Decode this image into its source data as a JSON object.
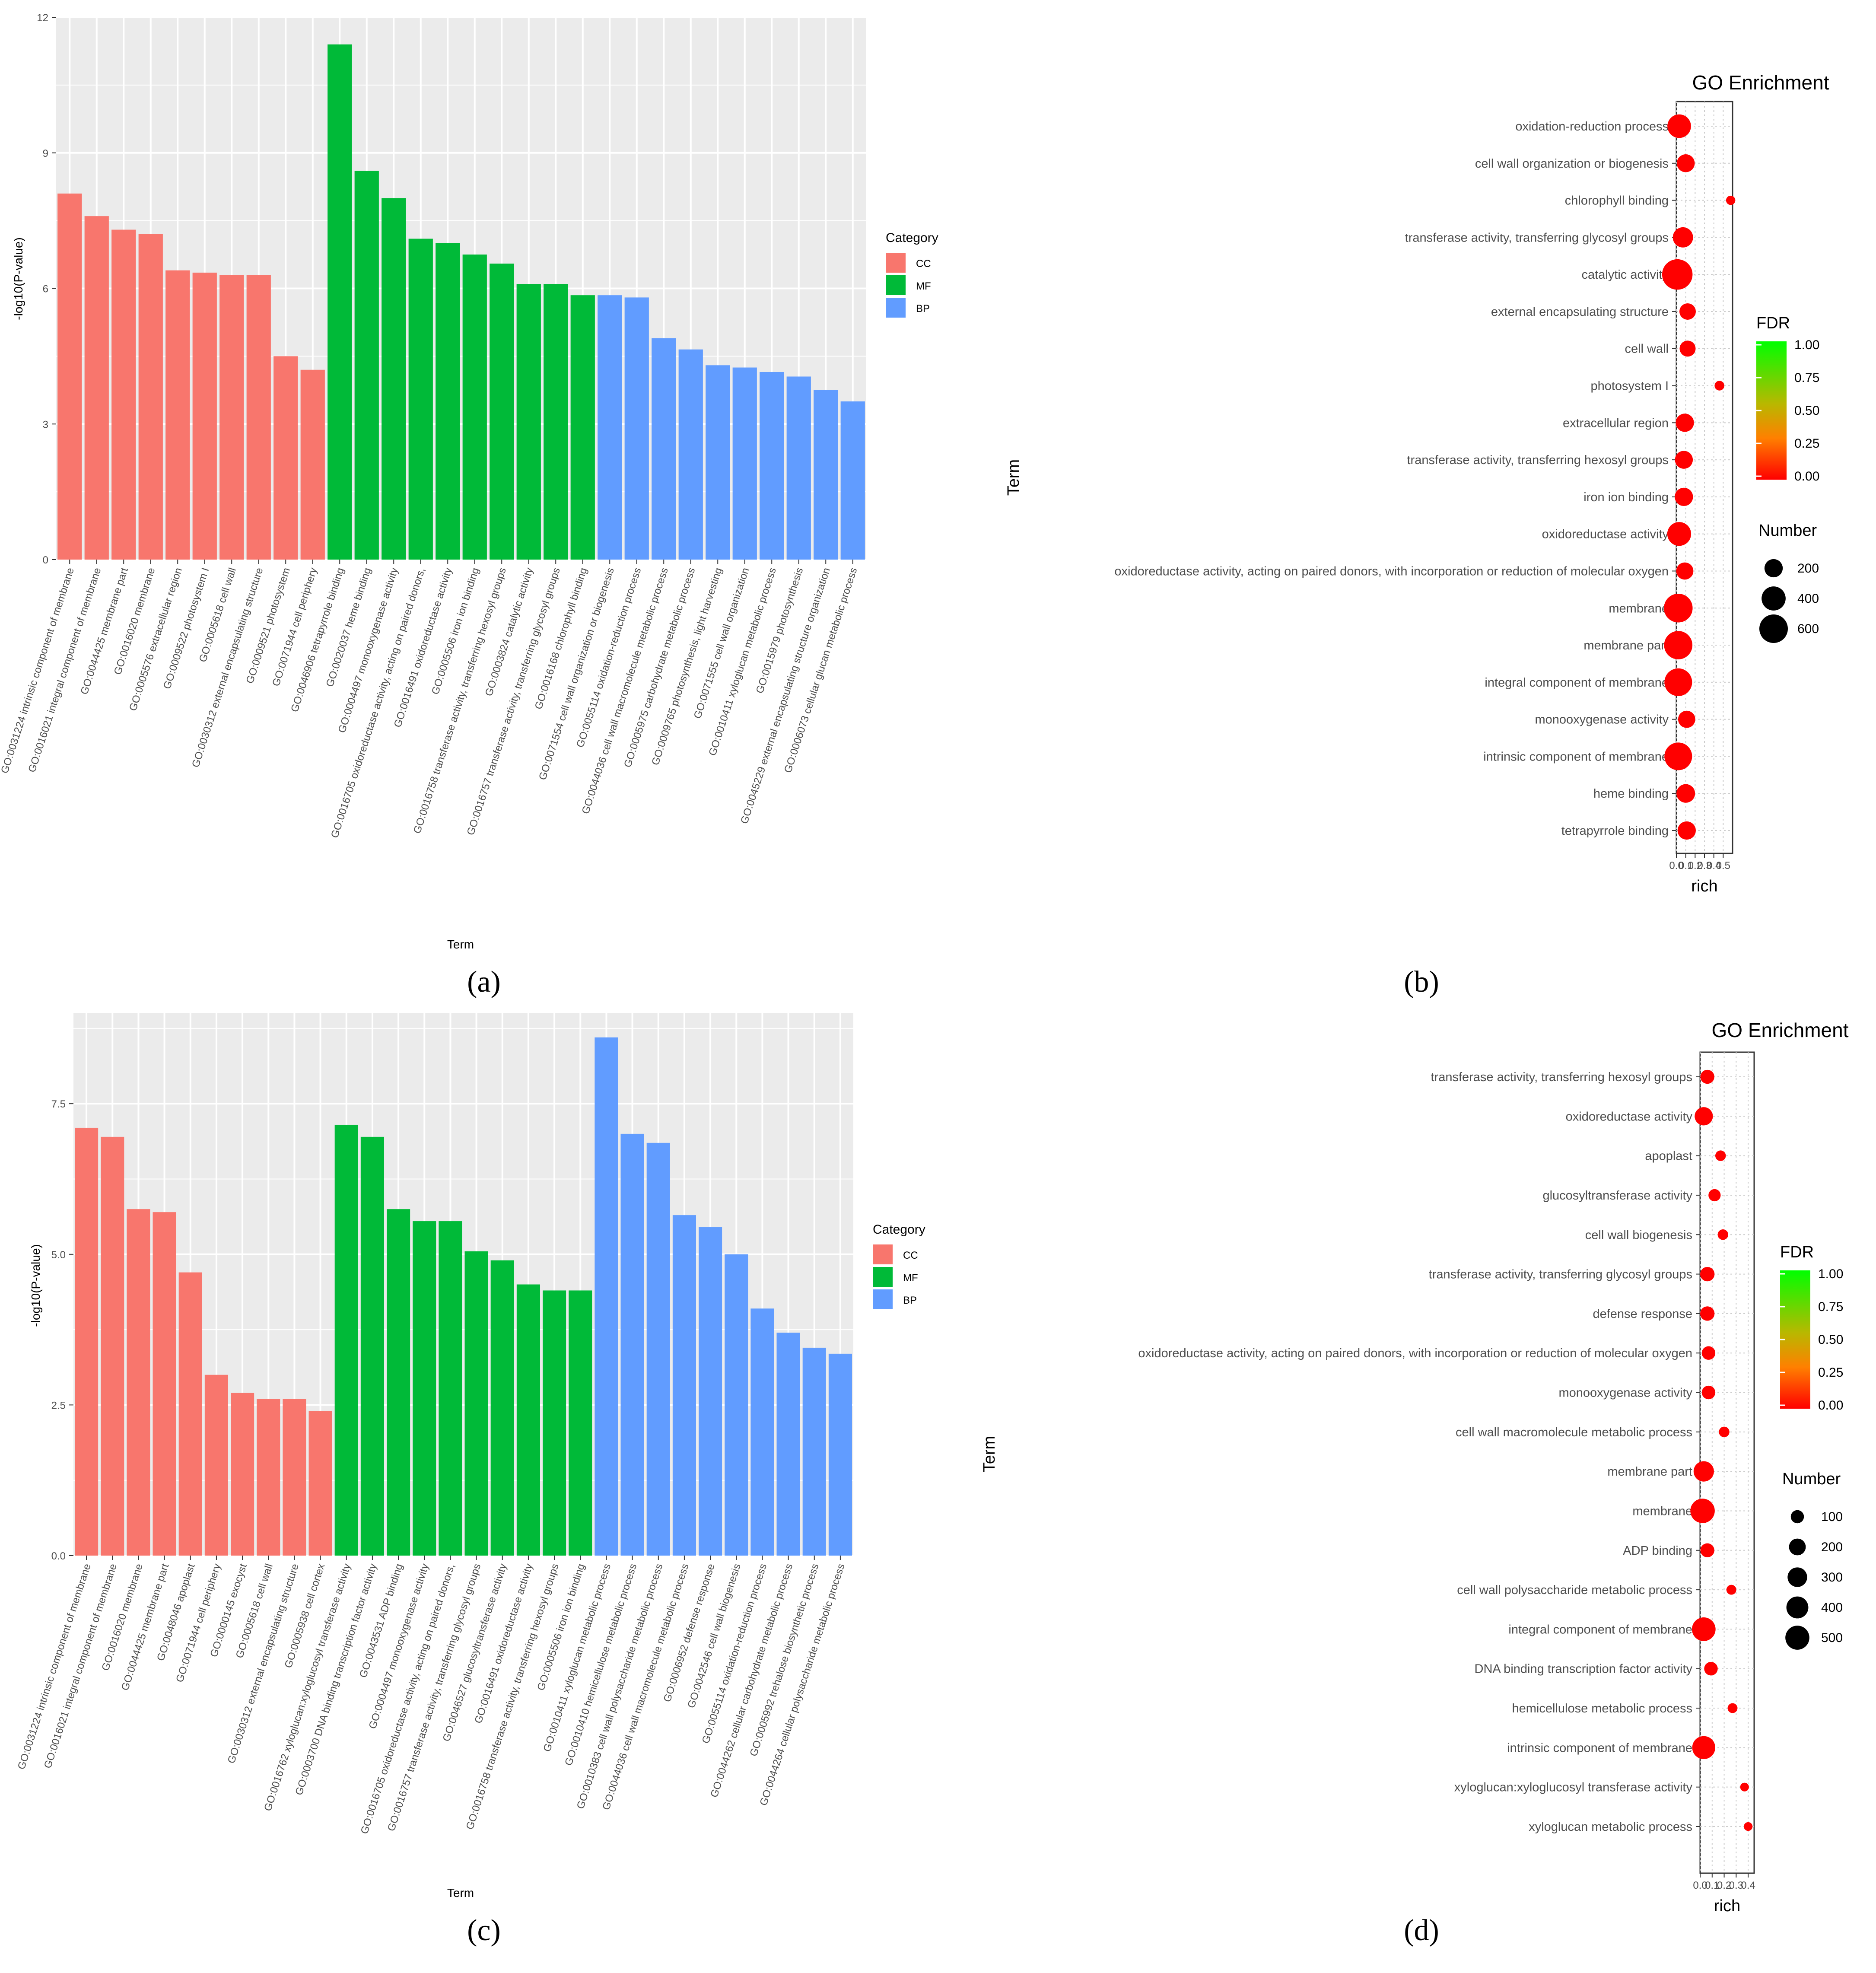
{
  "chart_data": [
    {
      "id": "a",
      "type": "bar",
      "panel_label": "(a)",
      "title": "",
      "xlabel": "Term",
      "ylabel": "-log10(P-value)",
      "ylim": [
        0,
        12
      ],
      "yticks": [
        0,
        3,
        6,
        9,
        12
      ],
      "grid": true,
      "legend": {
        "title": "Category",
        "position": "right",
        "entries": [
          "CC",
          "MF",
          "BP"
        ]
      },
      "category_colors": {
        "CC": "#F8766D",
        "MF": "#00BA38",
        "BP": "#619CFF"
      },
      "categories": [
        "GO:0031224 intrinsic component of membrane",
        "GO:0016021 integral component of membrane",
        "GO:0044425 membrane part",
        "GO:0016020 membrane",
        "GO:0005576 extracellular region",
        "GO:0009522 photosystem I",
        "GO:0005618 cell wall",
        "GO:0030312 external encapsulating structure",
        "GO:0009521 photosystem",
        "GO:0071944 cell periphery",
        "GO:0046906 tetrapyrrole binding",
        "GO:0020037 heme binding",
        "GO:0004497 monooxygenase activity",
        "GO:0016705 oxidoreductase activity, acting on paired donors,",
        "GO:0016491 oxidoreductase activity",
        "GO:0005506 iron ion binding",
        "GO:0016758 transferase activity, transferring hexosyl groups",
        "GO:0003824 catalytic activity",
        "GO:0016757 transferase activity, transferring glycosyl groups",
        "GO:0016168 chlorophyll binding",
        "GO:0071554 cell wall organization or biogenesis",
        "GO:0055114 oxidation-reduction process",
        "GO:0044036 cell wall macromolecule metabolic process",
        "GO:0005975 carbohydrate metabolic process",
        "GO:0009765 photosynthesis, light harvesting",
        "GO:0071555 cell wall organization",
        "GO:0010411 xyloglucan metabolic process",
        "GO:0015979 photosynthesis",
        "GO:0045229 external encapsulating structure organization",
        "GO:0006073 cellular glucan metabolic process"
      ],
      "values": [
        8.1,
        7.6,
        7.3,
        7.2,
        6.4,
        6.35,
        6.3,
        6.3,
        4.5,
        4.2,
        11.4,
        8.6,
        8.0,
        7.1,
        7.0,
        6.75,
        6.55,
        6.1,
        6.1,
        5.85,
        5.85,
        5.8,
        4.9,
        4.65,
        4.3,
        4.25,
        4.15,
        4.05,
        3.75,
        3.5
      ],
      "category": [
        "CC",
        "CC",
        "CC",
        "CC",
        "CC",
        "CC",
        "CC",
        "CC",
        "CC",
        "CC",
        "MF",
        "MF",
        "MF",
        "MF",
        "MF",
        "MF",
        "MF",
        "MF",
        "MF",
        "MF",
        "BP",
        "BP",
        "BP",
        "BP",
        "BP",
        "BP",
        "BP",
        "BP",
        "BP",
        "BP"
      ]
    },
    {
      "id": "b",
      "type": "scatter",
      "panel_label": "(b)",
      "title": "GO Enrichment",
      "xlabel": "rich",
      "ylabel": "Term",
      "xlim": [
        0,
        0.6
      ],
      "xticks": [
        "0.0",
        "0.1",
        "0.2",
        "0.3",
        "0.4",
        "0.5"
      ],
      "xtick_values": [
        0,
        0.1,
        0.2,
        0.3,
        0.4,
        0.5
      ],
      "terms": [
        "oxidation-reduction process",
        "cell wall organization or biogenesis",
        "chlorophyll binding",
        "transferase activity, transferring glycosyl groups",
        "catalytic activity",
        "external encapsulating structure",
        "cell wall",
        "photosystem I",
        "extracellular region",
        "transferase activity, transferring hexosyl groups",
        "iron ion binding",
        "oxidoreductase activity",
        "oxidoreductase activity, acting on paired donors, with incorporation or reduction of molecular oxygen",
        "membrane",
        "membrane part",
        "integral component of membrane",
        "monooxygenase activity",
        "intrinsic component of membrane",
        "heme binding",
        "tetrapyrrole binding"
      ],
      "rich": [
        0.03,
        0.1,
        0.58,
        0.07,
        0.01,
        0.12,
        0.12,
        0.46,
        0.09,
        0.08,
        0.08,
        0.03,
        0.09,
        0.02,
        0.02,
        0.02,
        0.11,
        0.02,
        0.1,
        0.11
      ],
      "number": [
        380,
        190,
        25,
        260,
        700,
        150,
        140,
        30,
        200,
        190,
        200,
        390,
        170,
        610,
        590,
        560,
        170,
        560,
        210,
        200
      ],
      "fdr": [
        0,
        0,
        0,
        0,
        0,
        0,
        0,
        0,
        0,
        0,
        0,
        0,
        0,
        0,
        0,
        0,
        0,
        0,
        0,
        0
      ],
      "fdr_legend": {
        "title": "FDR",
        "ticks": [
          "1.00",
          "0.75",
          "0.50",
          "0.25",
          "0.00"
        ],
        "low_color": "#FF0000",
        "high_color": "#00FF00"
      },
      "size_legend": {
        "title": "Number",
        "values": [
          200,
          400,
          600
        ]
      }
    },
    {
      "id": "c",
      "type": "bar",
      "panel_label": "(c)",
      "title": "",
      "xlabel": "Term",
      "ylabel": "-log10(P-value)",
      "ylim": [
        0,
        9
      ],
      "yticks": [
        0,
        2.5,
        5,
        7.5
      ],
      "ytick_labels": [
        "0.0",
        "2.5",
        "5.0",
        "7.5"
      ],
      "grid": true,
      "legend": {
        "title": "Category",
        "position": "right",
        "entries": [
          "CC",
          "MF",
          "BP"
        ]
      },
      "category_colors": {
        "CC": "#F8766D",
        "MF": "#00BA38",
        "BP": "#619CFF"
      },
      "categories": [
        "GO:0031224 intrinsic component of membrane",
        "GO:0016021 integral component of membrane",
        "GO:0016020 membrane",
        "GO:0044425 membrane part",
        "GO:0048046 apoplast",
        "GO:0071944 cell periphery",
        "GO:0000145 exocyst",
        "GO:0005618 cell wall",
        "GO:0030312 external encapsulating structure",
        "GO:0005938 cell cortex",
        "GO:0016762 xyloglucan:xyloglucosyl transferase activity",
        "GO:0003700 DNA binding transcription factor activity",
        "GO:0043531 ADP binding",
        "GO:0004497 monooxygenase activity",
        "GO:0016705 oxidoreductase activity, acting on paired donors,",
        "GO:0016757 transferase activity, transferring glycosyl groups",
        "GO:0046527 glucosyltransferase activity",
        "GO:0016491 oxidoreductase activity",
        "GO:0016758 transferase activity, transferring hexosyl groups",
        "GO:0005506 iron ion binding",
        "GO:0010411 xyloglucan metabolic process",
        "GO:0010410 hemicellulose metabolic process",
        "GO:0010383 cell wall polysaccharide metabolic process",
        "GO:0044036 cell wall macromolecule metabolic process",
        "GO:0006952 defense response",
        "GO:0042546 cell wall biogenesis",
        "GO:0055114 oxidation-reduction process",
        "GO:0044262 cellular carbohydrate metabolic process",
        "GO:0005992 trehalose biosynthetic process",
        "GO:0044264 cellular polysaccharide metabolic process"
      ],
      "values": [
        7.1,
        6.95,
        5.75,
        5.7,
        4.7,
        3.0,
        2.7,
        2.6,
        2.6,
        2.4,
        7.15,
        6.95,
        5.75,
        5.55,
        5.55,
        5.05,
        4.9,
        4.5,
        4.4,
        4.4,
        8.6,
        7.0,
        6.85,
        5.65,
        5.45,
        5.0,
        4.1,
        3.7,
        3.45,
        3.35
      ],
      "category": [
        "CC",
        "CC",
        "CC",
        "CC",
        "CC",
        "CC",
        "CC",
        "CC",
        "CC",
        "CC",
        "MF",
        "MF",
        "MF",
        "MF",
        "MF",
        "MF",
        "MF",
        "MF",
        "MF",
        "MF",
        "BP",
        "BP",
        "BP",
        "BP",
        "BP",
        "BP",
        "BP",
        "BP",
        "BP",
        "BP"
      ]
    },
    {
      "id": "d",
      "type": "scatter",
      "panel_label": "(d)",
      "title": "GO Enrichment",
      "xlabel": "rich",
      "ylabel": "Term",
      "xlim": [
        0,
        0.45
      ],
      "xticks": [
        "0.0",
        "0.1",
        "0.2",
        "0.3",
        "0.4"
      ],
      "xtick_values": [
        0,
        0.1,
        0.2,
        0.3,
        0.4
      ],
      "terms": [
        "transferase activity, transferring hexosyl groups",
        "oxidoreductase activity",
        "apoplast",
        "glucosyltransferase activity",
        "cell wall biogenesis",
        "transferase activity, transferring glycosyl groups",
        "defense response",
        "oxidoreductase activity, acting on paired donors, with incorporation or reduction of molecular oxygen",
        "monooxygenase activity",
        "cell wall macromolecule metabolic process",
        "membrane part",
        "membrane",
        "ADP binding",
        "cell wall polysaccharide metabolic process",
        "integral component of membrane",
        "DNA binding transcription factor activity",
        "hemicellulose metabolic process",
        "intrinsic component of membrane",
        "xyloglucan:xyloglucosyl transferase activity",
        "xyloglucan metabolic process"
      ],
      "rich": [
        0.06,
        0.03,
        0.17,
        0.12,
        0.19,
        0.06,
        0.06,
        0.07,
        0.07,
        0.2,
        0.03,
        0.02,
        0.06,
        0.26,
        0.03,
        0.09,
        0.27,
        0.03,
        0.37,
        0.4
      ],
      "number": [
        120,
        250,
        50,
        80,
        50,
        130,
        130,
        110,
        110,
        50,
        330,
        520,
        120,
        40,
        480,
        110,
        40,
        450,
        25,
        25
      ],
      "fdr": [
        0,
        0,
        0,
        0,
        0,
        0,
        0,
        0,
        0,
        0,
        0,
        0,
        0,
        0,
        0,
        0,
        0,
        0,
        0,
        0
      ],
      "fdr_legend": {
        "title": "FDR",
        "ticks": [
          "1.00",
          "0.75",
          "0.50",
          "0.25",
          "0.00"
        ],
        "low_color": "#FF0000",
        "high_color": "#00FF00"
      },
      "size_legend": {
        "title": "Number",
        "values": [
          100,
          200,
          300,
          400,
          500
        ]
      }
    }
  ]
}
